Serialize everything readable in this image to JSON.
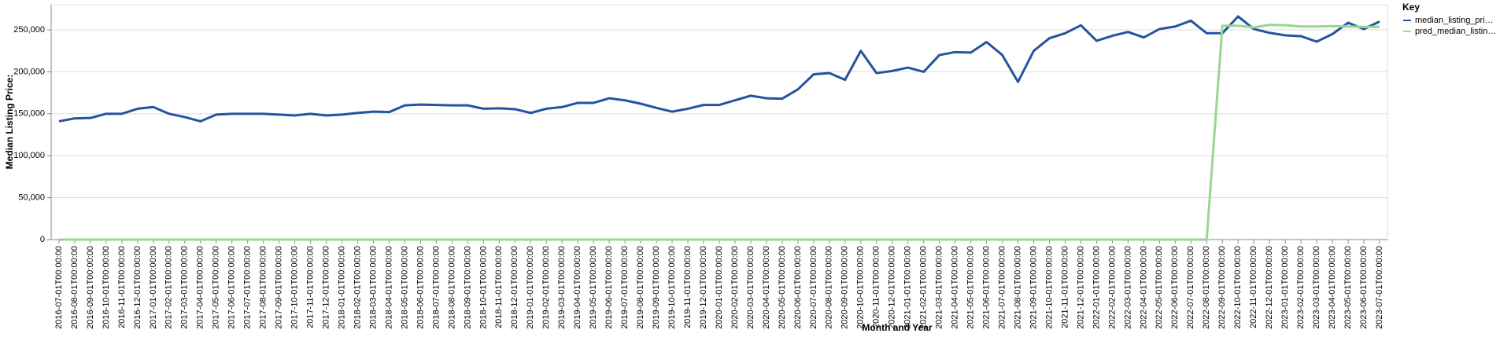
{
  "chart_data": {
    "type": "line",
    "x_label": "Month and Year",
    "y_label": "Median Listing Price:",
    "legend_title": "Key",
    "legend_position": "right",
    "grid": true,
    "x": [
      "2016-07-01T00:00:00",
      "2016-08-01T00:00:00",
      "2016-09-01T00:00:00",
      "2016-10-01T00:00:00",
      "2016-11-01T00:00:00",
      "2016-12-01T00:00:00",
      "2017-01-01T00:00:00",
      "2017-02-01T00:00:00",
      "2017-03-01T00:00:00",
      "2017-04-01T00:00:00",
      "2017-05-01T00:00:00",
      "2017-06-01T00:00:00",
      "2017-07-01T00:00:00",
      "2017-08-01T00:00:00",
      "2017-09-01T00:00:00",
      "2017-10-01T00:00:00",
      "2017-11-01T00:00:00",
      "2017-12-01T00:00:00",
      "2018-01-01T00:00:00",
      "2018-02-01T00:00:00",
      "2018-03-01T00:00:00",
      "2018-04-01T00:00:00",
      "2018-05-01T00:00:00",
      "2018-06-01T00:00:00",
      "2018-07-01T00:00:00",
      "2018-08-01T00:00:00",
      "2018-09-01T00:00:00",
      "2018-10-01T00:00:00",
      "2018-11-01T00:00:00",
      "2018-12-01T00:00:00",
      "2019-01-01T00:00:00",
      "2019-02-01T00:00:00",
      "2019-03-01T00:00:00",
      "2019-04-01T00:00:00",
      "2019-05-01T00:00:00",
      "2019-06-01T00:00:00",
      "2019-07-01T00:00:00",
      "2019-08-01T00:00:00",
      "2019-09-01T00:00:00",
      "2019-10-01T00:00:00",
      "2019-11-01T00:00:00",
      "2019-12-01T00:00:00",
      "2020-01-01T00:00:00",
      "2020-02-01T00:00:00",
      "2020-03-01T00:00:00",
      "2020-04-01T00:00:00",
      "2020-05-01T00:00:00",
      "2020-06-01T00:00:00",
      "2020-07-01T00:00:00",
      "2020-08-01T00:00:00",
      "2020-09-01T00:00:00",
      "2020-10-01T00:00:00",
      "2020-11-01T00:00:00",
      "2020-12-01T00:00:00",
      "2021-01-01T00:00:00",
      "2021-02-01T00:00:00",
      "2021-03-01T00:00:00",
      "2021-04-01T00:00:00",
      "2021-05-01T00:00:00",
      "2021-06-01T00:00:00",
      "2021-07-01T00:00:00",
      "2021-08-01T00:00:00",
      "2021-09-01T00:00:00",
      "2021-10-01T00:00:00",
      "2021-11-01T00:00:00",
      "2021-12-01T00:00:00",
      "2022-01-01T00:00:00",
      "2022-02-01T00:00:00",
      "2022-03-01T00:00:00",
      "2022-04-01T00:00:00",
      "2022-05-01T00:00:00",
      "2022-06-01T00:00:00",
      "2022-07-01T00:00:00",
      "2022-08-01T00:00:00",
      "2022-09-01T00:00:00",
      "2022-10-01T00:00:00",
      "2022-11-01T00:00:00",
      "2022-12-01T00:00:00",
      "2023-01-01T00:00:00",
      "2023-02-01T00:00:00",
      "2023-03-01T00:00:00",
      "2023-04-01T00:00:00",
      "2023-05-01T00:00:00",
      "2023-06-01T00:00:00",
      "2023-07-01T00:00:00"
    ],
    "series": [
      {
        "name": "median_listing_pri…",
        "color": "#2653a0",
        "values": [
          141000,
          144500,
          145000,
          150000,
          150000,
          156000,
          158000,
          150000,
          146000,
          141000,
          149000,
          150000,
          150000,
          150000,
          149000,
          148000,
          150000,
          148000,
          149000,
          151000,
          152500,
          152000,
          160000,
          161000,
          160500,
          160000,
          160000,
          156000,
          156500,
          155500,
          151000,
          156000,
          158000,
          163000,
          163000,
          168500,
          166000,
          162000,
          157000,
          152500,
          156000,
          160500,
          160500,
          166000,
          171500,
          168500,
          168000,
          179000,
          197000,
          198500,
          190500,
          225000,
          198500,
          201000,
          205000,
          200000,
          220000,
          223500,
          223000,
          235500,
          220000,
          188000,
          225000,
          240000,
          246000,
          255500,
          237000,
          243000,
          247500,
          241000,
          251000,
          254000,
          261000,
          246000,
          246000,
          266000,
          251000,
          246500,
          243500,
          242500,
          236000,
          245000,
          258500,
          251000,
          260000
        ]
      },
      {
        "name": "pred_median_listin…",
        "color": "#98d691",
        "values": [
          0,
          0,
          0,
          0,
          0,
          0,
          0,
          0,
          0,
          0,
          0,
          0,
          0,
          0,
          0,
          0,
          0,
          0,
          0,
          0,
          0,
          0,
          0,
          0,
          0,
          0,
          0,
          0,
          0,
          0,
          0,
          0,
          0,
          0,
          0,
          0,
          0,
          0,
          0,
          0,
          0,
          0,
          0,
          0,
          0,
          0,
          0,
          0,
          0,
          0,
          0,
          0,
          0,
          0,
          0,
          0,
          0,
          0,
          0,
          0,
          0,
          0,
          0,
          0,
          0,
          0,
          0,
          0,
          0,
          0,
          0,
          0,
          0,
          0,
          255000,
          255000,
          253000,
          256000,
          255500,
          254000,
          254000,
          254500,
          254000,
          253500,
          253500
        ]
      }
    ],
    "ylim": [
      0,
      280000
    ],
    "yticks": [
      0,
      {
        "value": 50000,
        "label": "50,000"
      },
      {
        "value": 100000,
        "label": "100,000"
      },
      {
        "value": 150000,
        "label": "150,000"
      },
      {
        "value": 200000,
        "label": "200,000"
      },
      {
        "value": 250000,
        "label": "250,000"
      }
    ]
  }
}
